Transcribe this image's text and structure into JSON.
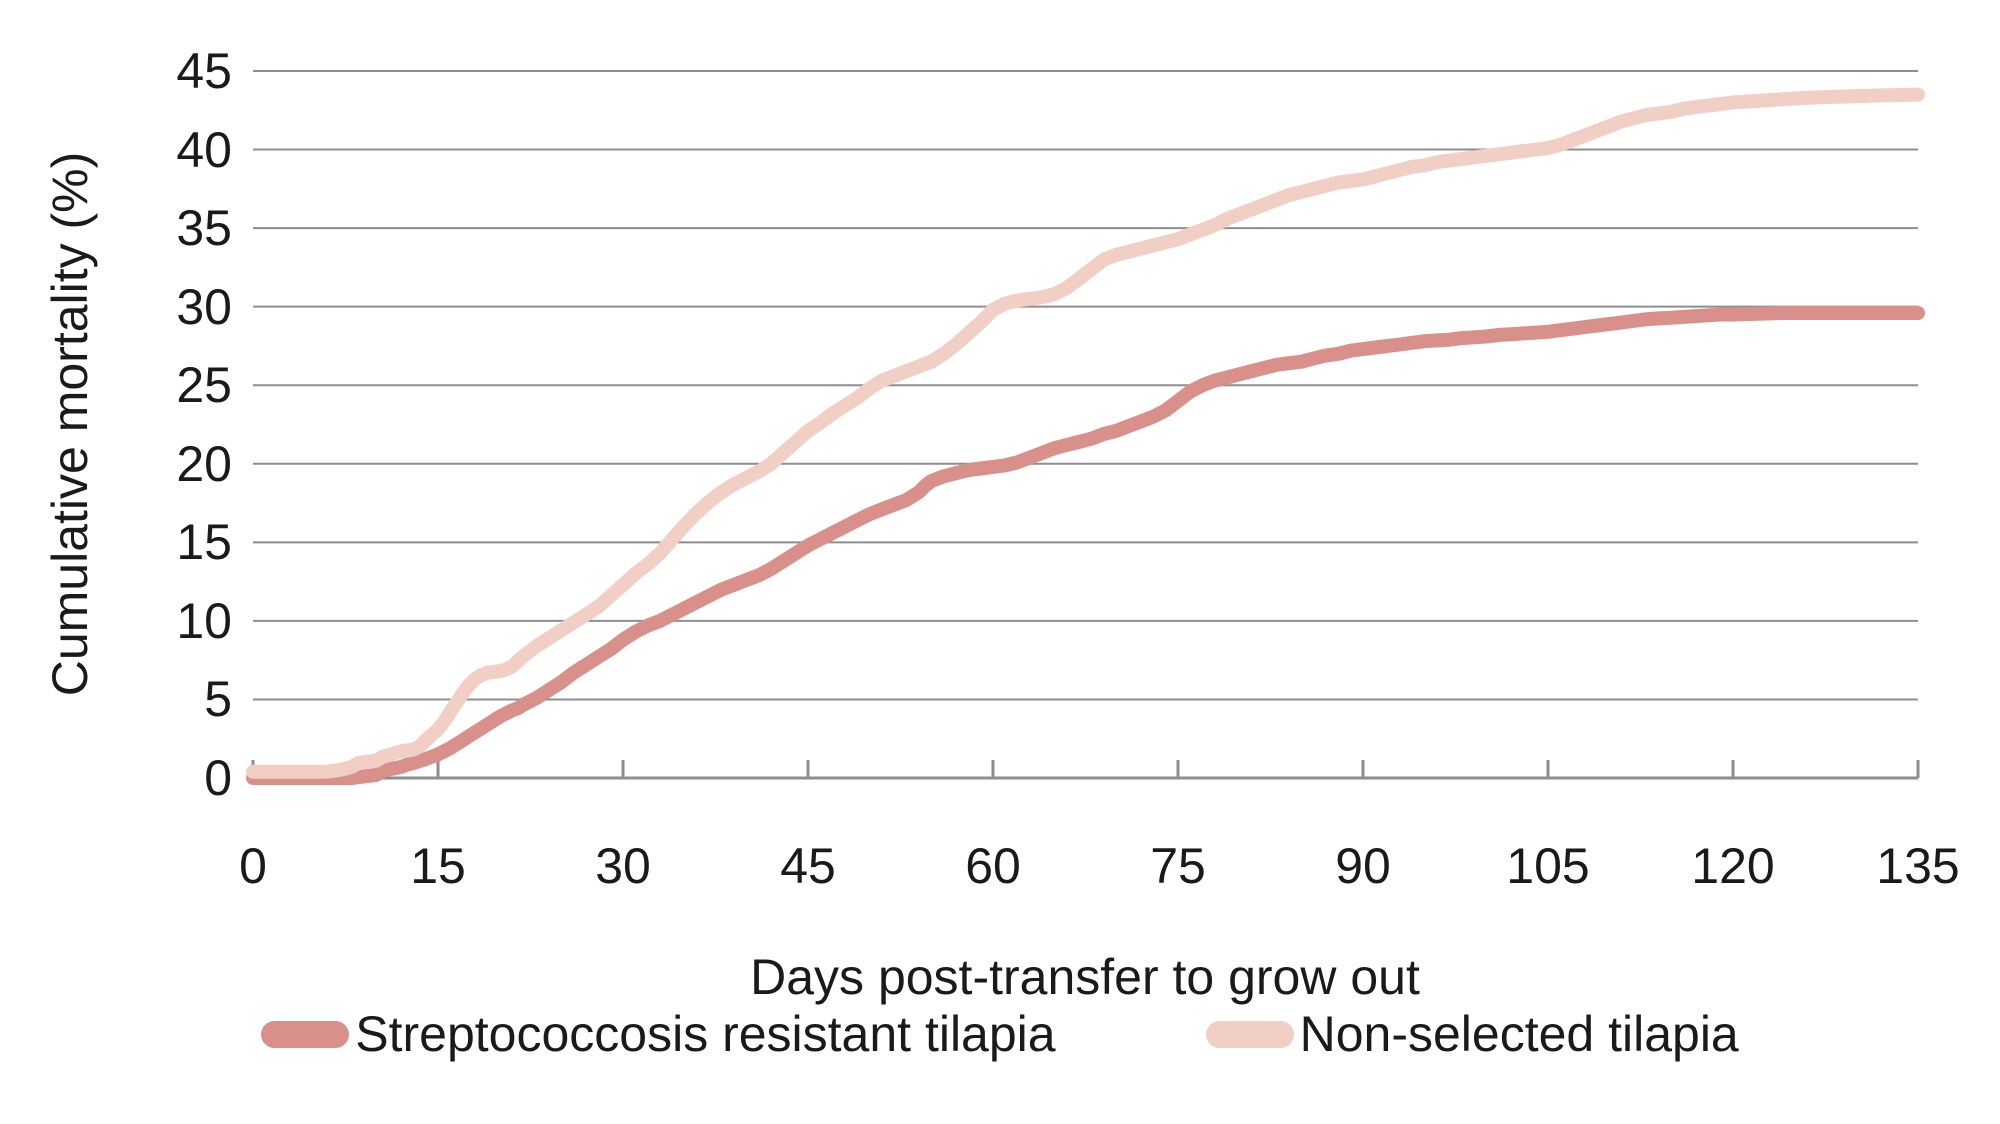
{
  "chart_data": {
    "type": "line",
    "title": "",
    "xlabel": "Days post-transfer to grow out",
    "ylabel": "Cumulative mortality (%)",
    "xlim": [
      0,
      135
    ],
    "ylim": [
      0,
      45
    ],
    "x_ticks": [
      0,
      15,
      30,
      45,
      60,
      75,
      90,
      105,
      120,
      135
    ],
    "y_ticks": [
      0,
      5,
      10,
      15,
      20,
      25,
      30,
      35,
      40,
      45
    ],
    "grid": "horizontal-only",
    "legend_position": "bottom",
    "colors": {
      "gridline": "#8E8E8E",
      "axis": "#8E8E8E",
      "text": "#1A1A1A",
      "background": "#FFFFFF"
    },
    "series": [
      {
        "name": "Streptococcosis resistant tilapia",
        "color": "#D9908A",
        "points": [
          [
            0,
            0
          ],
          [
            4,
            0
          ],
          [
            8,
            0
          ],
          [
            9,
            0.1
          ],
          [
            10,
            0.2
          ],
          [
            10.5,
            0.45
          ],
          [
            11,
            0.55
          ],
          [
            12,
            0.7
          ],
          [
            12.5,
            0.85
          ],
          [
            13,
            0.95
          ],
          [
            14,
            1.2
          ],
          [
            15,
            1.5
          ],
          [
            16,
            1.9
          ],
          [
            17,
            2.4
          ],
          [
            18,
            2.9
          ],
          [
            19,
            3.4
          ],
          [
            20,
            3.9
          ],
          [
            21,
            4.3
          ],
          [
            21.5,
            4.45
          ],
          [
            22,
            4.7
          ],
          [
            23,
            5.1
          ],
          [
            24,
            5.6
          ],
          [
            25,
            6.1
          ],
          [
            26,
            6.7
          ],
          [
            27,
            7.2
          ],
          [
            28,
            7.7
          ],
          [
            29,
            8.2
          ],
          [
            30,
            8.8
          ],
          [
            31,
            9.3
          ],
          [
            32,
            9.7
          ],
          [
            33,
            10.0
          ],
          [
            34,
            10.4
          ],
          [
            35,
            10.8
          ],
          [
            36,
            11.2
          ],
          [
            37,
            11.6
          ],
          [
            38,
            12.0
          ],
          [
            39,
            12.3
          ],
          [
            40,
            12.6
          ],
          [
            41,
            12.9
          ],
          [
            42,
            13.3
          ],
          [
            43,
            13.8
          ],
          [
            44,
            14.3
          ],
          [
            45,
            14.8
          ],
          [
            46,
            15.2
          ],
          [
            47,
            15.6
          ],
          [
            48,
            16.0
          ],
          [
            49,
            16.4
          ],
          [
            50,
            16.8
          ],
          [
            51,
            17.1
          ],
          [
            52,
            17.4
          ],
          [
            53,
            17.7
          ],
          [
            54,
            18.2
          ],
          [
            54.5,
            18.6
          ],
          [
            55,
            18.9
          ],
          [
            56,
            19.2
          ],
          [
            57,
            19.4
          ],
          [
            58,
            19.6
          ],
          [
            59,
            19.7
          ],
          [
            60,
            19.8
          ],
          [
            61,
            19.9
          ],
          [
            62,
            20.1
          ],
          [
            63,
            20.4
          ],
          [
            64,
            20.7
          ],
          [
            65,
            21.0
          ],
          [
            66,
            21.2
          ],
          [
            67,
            21.4
          ],
          [
            68,
            21.6
          ],
          [
            69,
            21.9
          ],
          [
            70,
            22.1
          ],
          [
            71,
            22.4
          ],
          [
            72,
            22.7
          ],
          [
            73,
            23.0
          ],
          [
            74,
            23.4
          ],
          [
            75,
            24.0
          ],
          [
            76,
            24.6
          ],
          [
            77,
            25.0
          ],
          [
            78,
            25.3
          ],
          [
            79,
            25.5
          ],
          [
            80,
            25.7
          ],
          [
            81,
            25.9
          ],
          [
            82,
            26.1
          ],
          [
            83,
            26.3
          ],
          [
            84,
            26.4
          ],
          [
            85,
            26.5
          ],
          [
            86,
            26.7
          ],
          [
            87,
            26.9
          ],
          [
            88,
            27.0
          ],
          [
            89,
            27.2
          ],
          [
            90,
            27.3
          ],
          [
            91,
            27.4
          ],
          [
            92,
            27.5
          ],
          [
            93,
            27.6
          ],
          [
            94,
            27.7
          ],
          [
            95,
            27.8
          ],
          [
            96,
            27.85
          ],
          [
            97,
            27.9
          ],
          [
            98,
            28.0
          ],
          [
            99,
            28.05
          ],
          [
            100,
            28.1
          ],
          [
            101,
            28.2
          ],
          [
            102,
            28.25
          ],
          [
            103,
            28.3
          ],
          [
            104,
            28.35
          ],
          [
            105,
            28.4
          ],
          [
            106,
            28.5
          ],
          [
            107,
            28.6
          ],
          [
            108,
            28.7
          ],
          [
            109,
            28.8
          ],
          [
            110,
            28.9
          ],
          [
            111,
            29.0
          ],
          [
            112,
            29.1
          ],
          [
            113,
            29.2
          ],
          [
            114,
            29.25
          ],
          [
            115,
            29.3
          ],
          [
            116,
            29.35
          ],
          [
            117,
            29.4
          ],
          [
            118,
            29.45
          ],
          [
            119,
            29.5
          ],
          [
            120,
            29.5
          ],
          [
            122,
            29.55
          ],
          [
            124,
            29.6
          ],
          [
            126,
            29.6
          ],
          [
            128,
            29.6
          ],
          [
            130,
            29.6
          ],
          [
            132,
            29.6
          ],
          [
            135,
            29.6
          ]
        ]
      },
      {
        "name": "Non-selected tilapia",
        "color": "#F1CFC5",
        "points": [
          [
            0,
            0.4
          ],
          [
            2,
            0.4
          ],
          [
            4,
            0.4
          ],
          [
            6,
            0.4
          ],
          [
            7,
            0.5
          ],
          [
            8,
            0.7
          ],
          [
            8.5,
            0.95
          ],
          [
            9.5,
            1.05
          ],
          [
            10,
            1.1
          ],
          [
            10.5,
            1.35
          ],
          [
            11,
            1.45
          ],
          [
            12,
            1.7
          ],
          [
            13,
            1.8
          ],
          [
            13.5,
            2.0
          ],
          [
            14,
            2.4
          ],
          [
            15,
            3.1
          ],
          [
            15.5,
            3.6
          ],
          [
            16,
            4.2
          ],
          [
            16.5,
            4.8
          ],
          [
            17,
            5.4
          ],
          [
            17.5,
            5.9
          ],
          [
            18,
            6.3
          ],
          [
            18.5,
            6.55
          ],
          [
            19,
            6.7
          ],
          [
            20,
            6.8
          ],
          [
            20.5,
            6.9
          ],
          [
            21,
            7.1
          ],
          [
            21.5,
            7.45
          ],
          [
            22,
            7.8
          ],
          [
            23,
            8.4
          ],
          [
            24,
            8.9
          ],
          [
            25,
            9.4
          ],
          [
            26,
            9.9
          ],
          [
            27,
            10.4
          ],
          [
            28,
            10.9
          ],
          [
            29,
            11.6
          ],
          [
            30,
            12.3
          ],
          [
            31,
            13.0
          ],
          [
            32,
            13.6
          ],
          [
            33,
            14.3
          ],
          [
            34,
            15.2
          ],
          [
            35,
            16.1
          ],
          [
            36,
            16.9
          ],
          [
            37,
            17.6
          ],
          [
            38,
            18.2
          ],
          [
            39,
            18.7
          ],
          [
            40,
            19.1
          ],
          [
            41,
            19.5
          ],
          [
            42,
            20.0
          ],
          [
            43,
            20.7
          ],
          [
            44,
            21.4
          ],
          [
            45,
            22.1
          ],
          [
            46,
            22.6
          ],
          [
            47,
            23.2
          ],
          [
            48,
            23.7
          ],
          [
            49,
            24.2
          ],
          [
            50,
            24.8
          ],
          [
            51,
            25.3
          ],
          [
            52,
            25.6
          ],
          [
            53,
            25.9
          ],
          [
            54,
            26.2
          ],
          [
            55,
            26.5
          ],
          [
            56,
            27.0
          ],
          [
            57,
            27.6
          ],
          [
            58,
            28.3
          ],
          [
            59,
            29.0
          ],
          [
            60,
            29.8
          ],
          [
            61,
            30.2
          ],
          [
            62,
            30.4
          ],
          [
            63,
            30.5
          ],
          [
            64,
            30.6
          ],
          [
            65,
            30.8
          ],
          [
            66,
            31.2
          ],
          [
            67,
            31.8
          ],
          [
            68,
            32.4
          ],
          [
            69,
            33.0
          ],
          [
            70,
            33.3
          ],
          [
            71,
            33.5
          ],
          [
            72,
            33.7
          ],
          [
            73,
            33.9
          ],
          [
            74,
            34.1
          ],
          [
            75,
            34.3
          ],
          [
            76,
            34.6
          ],
          [
            77,
            34.9
          ],
          [
            78,
            35.2
          ],
          [
            79,
            35.6
          ],
          [
            80,
            35.9
          ],
          [
            81,
            36.2
          ],
          [
            82,
            36.5
          ],
          [
            83,
            36.8
          ],
          [
            84,
            37.1
          ],
          [
            85,
            37.3
          ],
          [
            86,
            37.5
          ],
          [
            87,
            37.7
          ],
          [
            88,
            37.9
          ],
          [
            89,
            38.0
          ],
          [
            90,
            38.1
          ],
          [
            91,
            38.3
          ],
          [
            92,
            38.5
          ],
          [
            93,
            38.7
          ],
          [
            94,
            38.9
          ],
          [
            95,
            39.0
          ],
          [
            96,
            39.2
          ],
          [
            97,
            39.3
          ],
          [
            98,
            39.4
          ],
          [
            99,
            39.5
          ],
          [
            100,
            39.6
          ],
          [
            101,
            39.7
          ],
          [
            102,
            39.8
          ],
          [
            103,
            39.9
          ],
          [
            104,
            40.0
          ],
          [
            105,
            40.1
          ],
          [
            106,
            40.3
          ],
          [
            107,
            40.6
          ],
          [
            108,
            40.9
          ],
          [
            109,
            41.2
          ],
          [
            110,
            41.5
          ],
          [
            111,
            41.8
          ],
          [
            112,
            42.0
          ],
          [
            113,
            42.2
          ],
          [
            114,
            42.3
          ],
          [
            115,
            42.4
          ],
          [
            116,
            42.6
          ],
          [
            117,
            42.7
          ],
          [
            118,
            42.8
          ],
          [
            119,
            42.9
          ],
          [
            120,
            43.0
          ],
          [
            122,
            43.1
          ],
          [
            124,
            43.2
          ],
          [
            126,
            43.3
          ],
          [
            128,
            43.35
          ],
          [
            130,
            43.4
          ],
          [
            132,
            43.45
          ],
          [
            135,
            43.5
          ]
        ]
      }
    ]
  }
}
